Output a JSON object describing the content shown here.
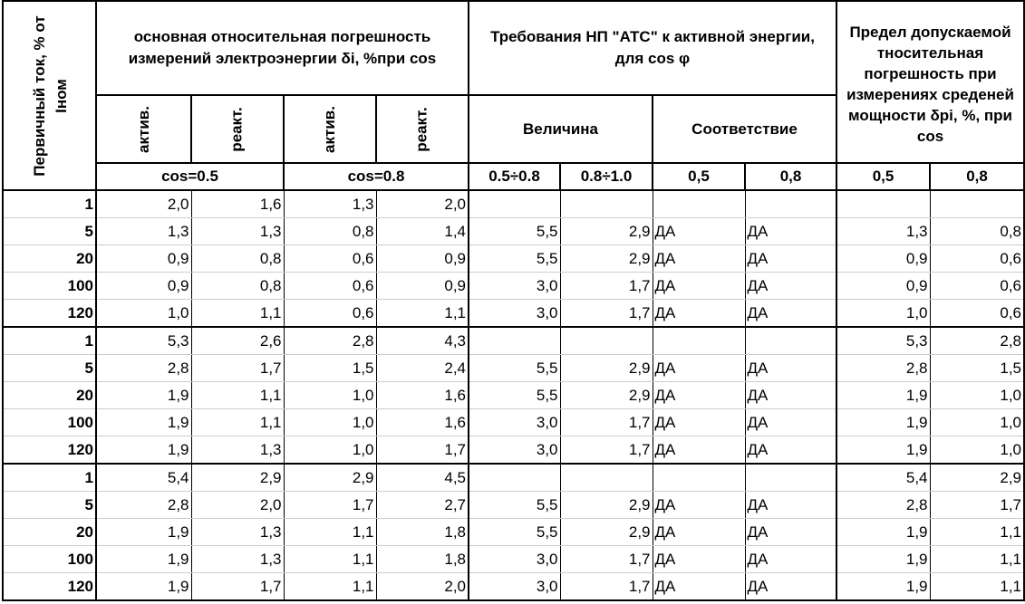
{
  "header": {
    "col0": "Первичный ток, % от Iном",
    "group1": "основная относительная погрешность измерений электроэнергии δi, %при cos",
    "group2": "Требования НП \"АТС\" к активной энергии, для cos φ",
    "group3": "Предел допускаемой тносительная погрешность при измерениях среденей мощности δpi, %, при cos",
    "sub": [
      "актив.",
      "реакт.",
      "актив.",
      "реакт."
    ],
    "velichina": "Величина",
    "sootvetstvie": "Соответствие",
    "cos05": "cos=0.5",
    "cos08": "cos=0.8",
    "r3": [
      "0.5÷0.8",
      "0.8÷1.0",
      "0,5",
      "0,8",
      "0,5",
      "0,8"
    ]
  },
  "groups": [
    [
      [
        "1",
        "2,0",
        "1,6",
        "1,3",
        "2,0",
        "",
        "",
        "",
        "",
        "",
        ""
      ],
      [
        "5",
        "1,3",
        "1,3",
        "0,8",
        "1,4",
        "5,5",
        "2,9",
        "ДА",
        "ДА",
        "1,3",
        "0,8"
      ],
      [
        "20",
        "0,9",
        "0,8",
        "0,6",
        "0,9",
        "5,5",
        "2,9",
        "ДА",
        "ДА",
        "0,9",
        "0,6"
      ],
      [
        "100",
        "0,9",
        "0,8",
        "0,6",
        "0,9",
        "3,0",
        "1,7",
        "ДА",
        "ДА",
        "0,9",
        "0,6"
      ],
      [
        "120",
        "1,0",
        "1,1",
        "0,6",
        "1,1",
        "3,0",
        "1,7",
        "ДА",
        "ДА",
        "1,0",
        "0,6"
      ]
    ],
    [
      [
        "1",
        "5,3",
        "2,6",
        "2,8",
        "4,3",
        "",
        "",
        "",
        "",
        "5,3",
        "2,8"
      ],
      [
        "5",
        "2,8",
        "1,7",
        "1,5",
        "2,4",
        "5,5",
        "2,9",
        "ДА",
        "ДА",
        "2,8",
        "1,5"
      ],
      [
        "20",
        "1,9",
        "1,1",
        "1,0",
        "1,6",
        "5,5",
        "2,9",
        "ДА",
        "ДА",
        "1,9",
        "1,0"
      ],
      [
        "100",
        "1,9",
        "1,1",
        "1,0",
        "1,6",
        "3,0",
        "1,7",
        "ДА",
        "ДА",
        "1,9",
        "1,0"
      ],
      [
        "120",
        "1,9",
        "1,3",
        "1,0",
        "1,7",
        "3,0",
        "1,7",
        "ДА",
        "ДА",
        "1,9",
        "1,0"
      ]
    ],
    [
      [
        "1",
        "5,4",
        "2,9",
        "2,9",
        "4,5",
        "",
        "",
        "",
        "",
        "5,4",
        "2,9"
      ],
      [
        "5",
        "2,8",
        "2,0",
        "1,7",
        "2,7",
        "5,5",
        "2,9",
        "ДА",
        "ДА",
        "2,8",
        "1,7"
      ],
      [
        "20",
        "1,9",
        "1,3",
        "1,1",
        "1,8",
        "5,5",
        "2,9",
        "ДА",
        "ДА",
        "1,9",
        "1,1"
      ],
      [
        "100",
        "1,9",
        "1,3",
        "1,1",
        "1,8",
        "3,0",
        "1,7",
        "ДА",
        "ДА",
        "1,9",
        "1,1"
      ],
      [
        "120",
        "1,9",
        "1,7",
        "1,1",
        "2,0",
        "3,0",
        "1,7",
        "ДА",
        "ДА",
        "1,9",
        "1,1"
      ]
    ]
  ]
}
